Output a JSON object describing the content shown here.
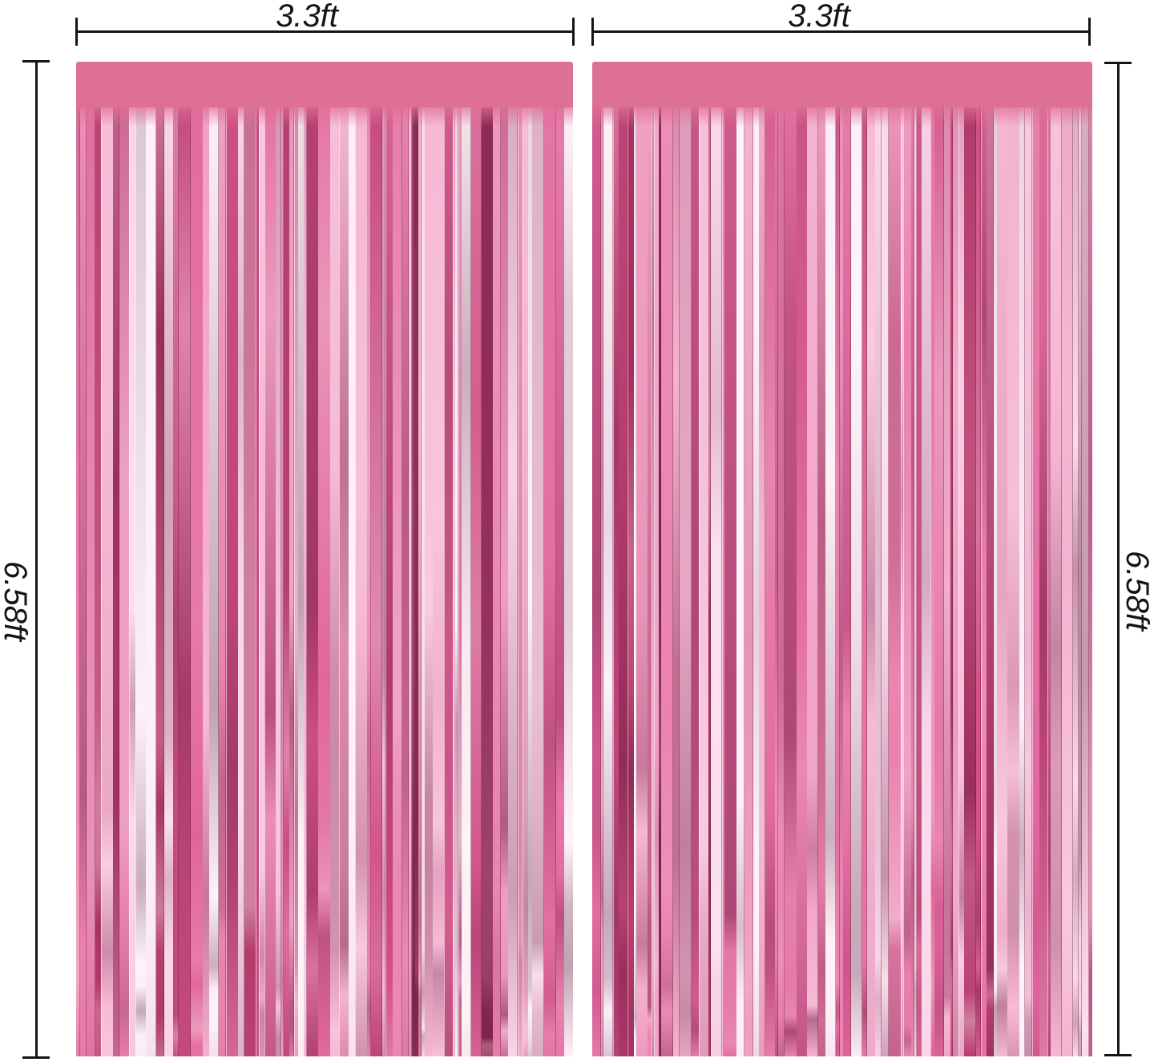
{
  "diagram": {
    "background": "#ffffff",
    "line_color": "#141414"
  },
  "dimensions": {
    "left_curtain_width_label": "3.3ft",
    "right_curtain_width_label": "3.3ft",
    "left_curtain_height_label": "6.58ft",
    "right_curtain_height_label": "6.58ft"
  },
  "curtains": {
    "header_color": "#de7096",
    "strip_palette": [
      {
        "color": "#fdeef6",
        "weight": 2
      },
      {
        "color": "#fad2e5",
        "weight": 3
      },
      {
        "color": "#f6b5d2",
        "weight": 4
      },
      {
        "color": "#f09bc0",
        "weight": 3
      },
      {
        "color": "#ea7fae",
        "weight": 3
      },
      {
        "color": "#e2659c",
        "weight": 3
      },
      {
        "color": "#d14f87",
        "weight": 2
      },
      {
        "color": "#b83d70",
        "weight": 1
      },
      {
        "color": "#93305a",
        "weight": 1
      }
    ]
  }
}
